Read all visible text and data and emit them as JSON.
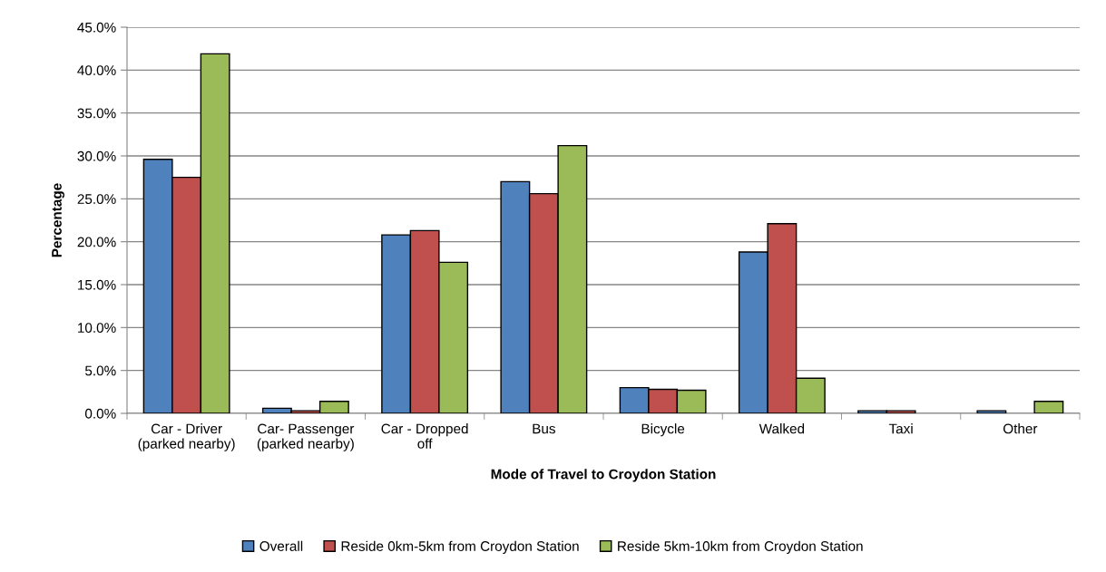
{
  "chart_data": {
    "type": "bar",
    "xlabel": "Mode of Travel to Croydon Station",
    "ylabel": "Percentage",
    "categories": [
      "Car - Driver\n(parked nearby)",
      "Car- Passenger\n(parked nearby)",
      "Car - Dropped\noff",
      "Bus",
      "Bicycle",
      "Walked",
      "Taxi",
      "Other"
    ],
    "series": [
      {
        "name": "Overall",
        "color": "#4f81bd",
        "values": [
          29.6,
          0.6,
          20.8,
          27.0,
          3.0,
          18.8,
          0.3,
          0.3
        ]
      },
      {
        "name": "Reside 0km-5km from Croydon Station",
        "color": "#c0504d",
        "values": [
          27.5,
          0.3,
          21.3,
          25.6,
          2.8,
          22.1,
          0.3,
          null
        ]
      },
      {
        "name": "Reside 5km-10km from Croydon Station",
        "color": "#9bbb59",
        "values": [
          41.9,
          1.4,
          17.6,
          31.2,
          2.7,
          4.1,
          null,
          1.4
        ]
      }
    ],
    "ylim": [
      0,
      45
    ],
    "yticks": [
      {
        "value": 0,
        "label": "0.0%"
      },
      {
        "value": 5,
        "label": "5.0%"
      },
      {
        "value": 10,
        "label": "10.0%"
      },
      {
        "value": 15,
        "label": "15.0%"
      },
      {
        "value": 20,
        "label": "20.0%"
      },
      {
        "value": 25,
        "label": "25.0%"
      },
      {
        "value": 30,
        "label": "30.0%"
      },
      {
        "value": 35,
        "label": "35.0%"
      },
      {
        "value": 40,
        "label": "40.0%"
      },
      {
        "value": 45,
        "label": "45.0%"
      }
    ],
    "grid": "y",
    "legend": "bottom"
  }
}
